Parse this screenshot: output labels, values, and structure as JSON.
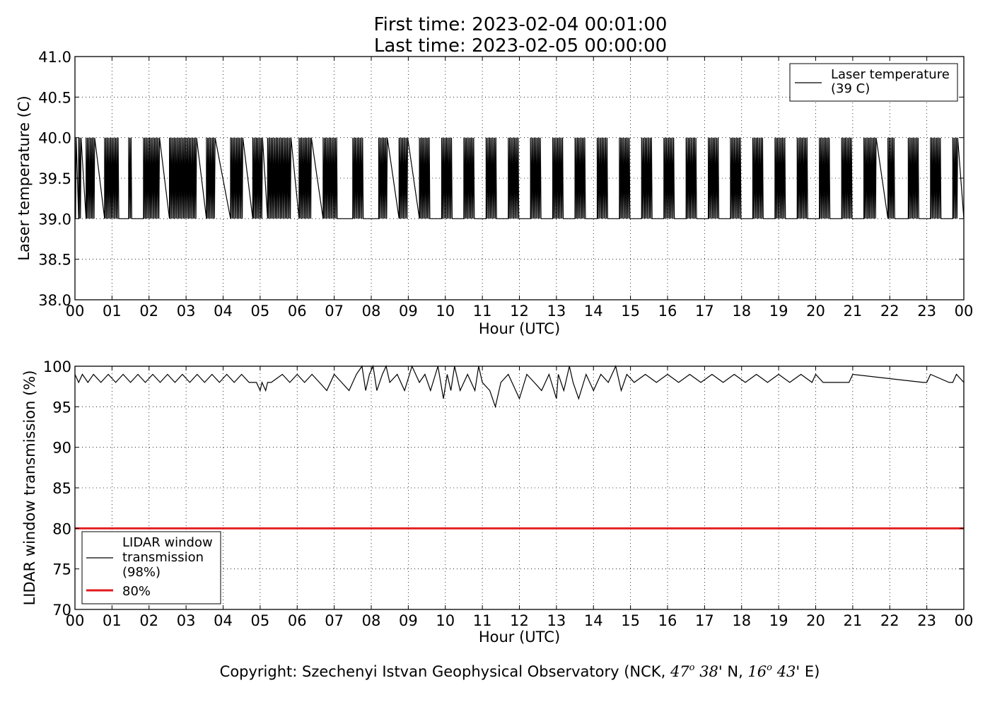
{
  "title_line1": "First time: 2023-02-04 00:01:00",
  "title_line2": "Last time: 2023-02-05 00:00:00",
  "copyright": {
    "prefix": "Copyright: Szechenyi Istvan Geophysical Observatory (NCK, ",
    "lat_deg": "47",
    "lat_min": "38",
    "lat_dir": "' N, ",
    "lon_deg": "16",
    "lon_min": "43",
    "lon_dir": "' E)",
    "degree_mark": "o"
  },
  "chart_data": [
    {
      "type": "line",
      "xlabel": "Hour (UTC)",
      "ylabel": "Laser temperature (C)",
      "x_unit": "hour",
      "xlim": [
        0,
        24
      ],
      "ylim": [
        38.0,
        41.0
      ],
      "grid": true,
      "grid_style": "dotted",
      "x_tick_labels": [
        "00",
        "01",
        "02",
        "03",
        "04",
        "05",
        "06",
        "07",
        "08",
        "09",
        "10",
        "11",
        "12",
        "13",
        "14",
        "15",
        "16",
        "17",
        "18",
        "19",
        "20",
        "21",
        "22",
        "23",
        "00"
      ],
      "y_tick_labels": [
        "38.0",
        "38.5",
        "39.0",
        "39.5",
        "40.0",
        "40.5",
        "41.0"
      ],
      "y_ticks": [
        38.0,
        38.5,
        39.0,
        39.5,
        40.0,
        40.5,
        41.0
      ],
      "legend": {
        "placement": "top-right",
        "entries": [
          {
            "label_lines": [
              "Laser temperature",
              "(39 C)"
            ],
            "color": "#000000"
          }
        ]
      },
      "series": [
        {
          "name": "Laser temperature (39 C)",
          "color": "#000000",
          "baseline": 39.0,
          "high": 40.0,
          "x": [
            0.0,
            0.05,
            0.1,
            0.18,
            0.3,
            0.55,
            0.8,
            1.2,
            1.45,
            1.55,
            1.85,
            2.3,
            2.55,
            3.3,
            3.55,
            3.8,
            4.2,
            4.55,
            4.8,
            5.08,
            5.2,
            5.85,
            6.05,
            6.4,
            6.7,
            7.1,
            7.5,
            7.8,
            8.2,
            8.45,
            8.75,
            9.0,
            9.3,
            9.6,
            9.9,
            10.2,
            10.5,
            10.8,
            11.1,
            11.4,
            11.7,
            12.0,
            12.3,
            12.6,
            12.9,
            13.2,
            13.5,
            13.8,
            14.1,
            14.4,
            14.7,
            15.0,
            15.3,
            15.6,
            15.9,
            16.2,
            16.5,
            16.8,
            17.1,
            17.4,
            17.7,
            18.0,
            18.3,
            18.6,
            18.9,
            19.2,
            19.5,
            19.8,
            20.1,
            20.4,
            20.7,
            21.0,
            21.3,
            21.65,
            21.95,
            22.15,
            22.5,
            22.8,
            23.1,
            23.4,
            23.7,
            23.85,
            24.0
          ],
          "y": [
            40.0,
            39.0,
            40.0,
            39.0,
            40.0,
            39.0,
            40.0,
            39.0,
            40.0,
            39.0,
            40.0,
            39.0,
            40.0,
            39.0,
            40.0,
            39.0,
            40.0,
            39.0,
            40.0,
            39.0,
            40.0,
            39.0,
            40.0,
            39.0,
            40.0,
            39.0,
            40.0,
            39.0,
            40.0,
            39.0,
            40.0,
            39.0,
            40.0,
            39.0,
            40.0,
            39.0,
            40.0,
            39.0,
            40.0,
            39.0,
            40.0,
            39.0,
            40.0,
            39.0,
            40.0,
            39.0,
            40.0,
            39.0,
            40.0,
            39.0,
            40.0,
            39.0,
            40.0,
            39.0,
            40.0,
            39.0,
            40.0,
            39.0,
            40.0,
            39.0,
            40.0,
            39.0,
            40.0,
            39.0,
            40.0,
            39.0,
            40.0,
            39.0,
            40.0,
            39.0,
            40.0,
            39.0,
            40.0,
            39.0,
            40.0,
            39.0,
            40.0,
            39.0,
            40.0,
            39.0,
            40.0,
            39.0,
            39.0
          ]
        }
      ]
    },
    {
      "type": "line",
      "xlabel": "Hour (UTC)",
      "ylabel": "LIDAR window transmission (%)",
      "x_unit": "hour",
      "xlim": [
        0,
        24
      ],
      "ylim": [
        70,
        100
      ],
      "grid": true,
      "grid_style": "dotted",
      "x_tick_labels": [
        "00",
        "01",
        "02",
        "03",
        "04",
        "05",
        "06",
        "07",
        "08",
        "09",
        "10",
        "11",
        "12",
        "13",
        "14",
        "15",
        "16",
        "17",
        "18",
        "19",
        "20",
        "21",
        "22",
        "23",
        "00"
      ],
      "y_tick_labels": [
        "70",
        "75",
        "80",
        "85",
        "90",
        "95",
        "100"
      ],
      "y_ticks": [
        70,
        75,
        80,
        85,
        90,
        95,
        100
      ],
      "legend": {
        "placement": "lower-left",
        "entries": [
          {
            "label_lines": [
              "LIDAR window",
              "transmission",
              "(98%)"
            ],
            "color": "#000000"
          },
          {
            "label_lines": [
              "80%"
            ],
            "color": "#e31a1c"
          }
        ]
      },
      "series": [
        {
          "name": "LIDAR window transmission (98%)",
          "color": "#000000",
          "x": [
            0.0,
            0.1,
            0.2,
            0.35,
            0.5,
            0.7,
            0.9,
            1.1,
            1.3,
            1.5,
            1.7,
            1.9,
            2.1,
            2.3,
            2.5,
            2.7,
            2.9,
            3.1,
            3.3,
            3.5,
            3.7,
            3.9,
            4.1,
            4.3,
            4.5,
            4.7,
            4.9,
            5.0,
            5.05,
            5.15,
            5.2,
            5.3,
            5.6,
            5.8,
            6.0,
            6.2,
            6.4,
            6.6,
            6.8,
            7.0,
            7.2,
            7.4,
            7.6,
            7.75,
            7.85,
            7.95,
            8.05,
            8.15,
            8.3,
            8.4,
            8.5,
            8.7,
            8.9,
            9.1,
            9.3,
            9.45,
            9.6,
            9.8,
            9.95,
            10.05,
            10.15,
            10.25,
            10.4,
            10.6,
            10.8,
            10.9,
            11.0,
            11.2,
            11.35,
            11.5,
            11.7,
            11.9,
            12.0,
            12.2,
            12.4,
            12.6,
            12.8,
            13.0,
            13.05,
            13.2,
            13.35,
            13.45,
            13.6,
            13.8,
            14.0,
            14.2,
            14.4,
            14.6,
            14.75,
            14.9,
            15.1,
            15.4,
            15.7,
            16.0,
            16.3,
            16.6,
            16.9,
            17.2,
            17.5,
            17.8,
            18.1,
            18.4,
            18.7,
            19.0,
            19.3,
            19.6,
            19.9,
            20.0,
            20.2,
            20.9,
            21.0,
            22.9,
            23.0,
            23.1,
            23.6,
            23.7,
            23.8,
            24.0
          ],
          "y": [
            99,
            98,
            99,
            98,
            99,
            98,
            99,
            98,
            99,
            98,
            99,
            98,
            99,
            98,
            99,
            98,
            99,
            98,
            99,
            98,
            99,
            98,
            99,
            98,
            99,
            98,
            98,
            97,
            98,
            97,
            98,
            98,
            99,
            98,
            99,
            98,
            99,
            98,
            97,
            99,
            98,
            97,
            99,
            100,
            97,
            99,
            100,
            97,
            99,
            100,
            98,
            99,
            97,
            100,
            98,
            99,
            97,
            100,
            96,
            99,
            97,
            100,
            97,
            99,
            97,
            100,
            98,
            97,
            95,
            98,
            99,
            97,
            96,
            99,
            98,
            97,
            99,
            96,
            99,
            97,
            100,
            98,
            96,
            99,
            97,
            99,
            98,
            100,
            97,
            99,
            98,
            99,
            98,
            99,
            98,
            99,
            98,
            99,
            98,
            99,
            98,
            99,
            98,
            99,
            98,
            99,
            98,
            99,
            98,
            98,
            99,
            98,
            98,
            99,
            98,
            98,
            99,
            98
          ]
        },
        {
          "name": "80%",
          "color": "#e31a1c",
          "x": [
            0,
            24
          ],
          "y": [
            80,
            80
          ]
        }
      ]
    }
  ]
}
